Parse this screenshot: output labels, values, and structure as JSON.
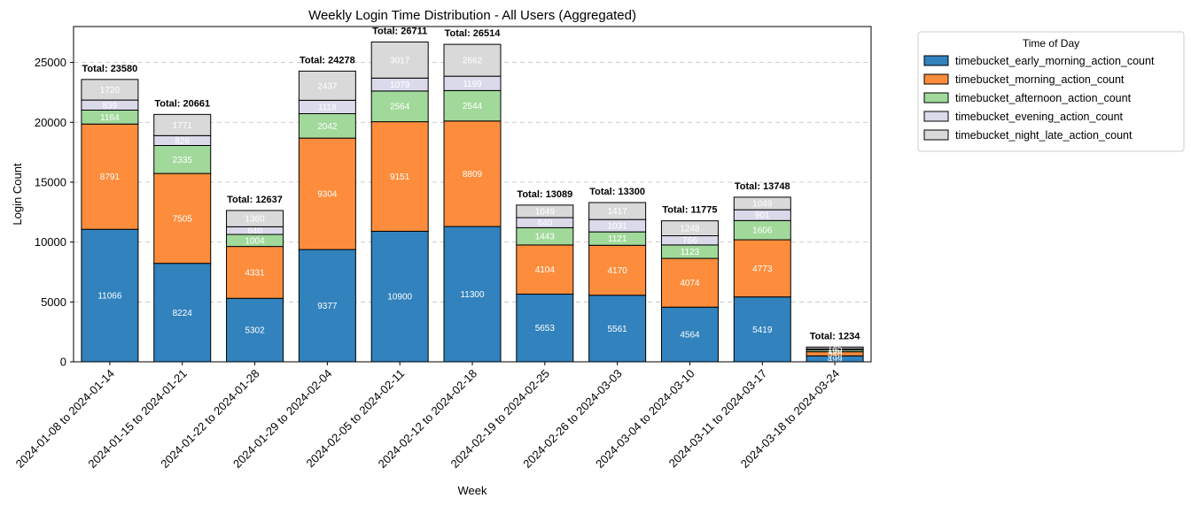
{
  "chart_data": {
    "type": "bar",
    "stacked": true,
    "title": "Weekly Login Time Distribution - All Users (Aggregated)",
    "xlabel": "Week",
    "ylabel": "Login Count",
    "ylim": [
      0,
      28000
    ],
    "yticks": [
      0,
      5000,
      10000,
      15000,
      20000,
      25000
    ],
    "grid": "y-dashed",
    "legend_title": "Time of Day",
    "legend_position": "outside-top-right",
    "total_prefix": "Total: ",
    "categories": [
      "2024-01-08 to 2024-01-14",
      "2024-01-15 to 2024-01-21",
      "2024-01-22 to 2024-01-28",
      "2024-01-29 to 2024-02-04",
      "2024-02-05 to 2024-02-11",
      "2024-02-12 to 2024-02-18",
      "2024-02-19 to 2024-02-25",
      "2024-02-26 to 2024-03-03",
      "2024-03-04 to 2024-03-10",
      "2024-03-11 to 2024-03-17",
      "2024-03-18 to 2024-03-24"
    ],
    "series": [
      {
        "name": "timebucket_early_morning_action_count",
        "color": "#3182bd",
        "values": [
          11066,
          8224,
          5302,
          9377,
          10900,
          11300,
          5653,
          5561,
          4564,
          5419,
          499
        ]
      },
      {
        "name": "timebucket_morning_action_count",
        "color": "#fd8d3c",
        "values": [
          8791,
          7505,
          4331,
          9304,
          9151,
          8809,
          4104,
          4170,
          4074,
          4773,
          340
        ]
      },
      {
        "name": "timebucket_afternoon_action_count",
        "color": "#a1d99b",
        "values": [
          1164,
          2335,
          1004,
          2042,
          2564,
          2544,
          1443,
          1121,
          1123,
          1606,
          150
        ]
      },
      {
        "name": "timebucket_evening_action_count",
        "color": "#dadaeb",
        "values": [
          839,
          826,
          640,
          1118,
          1079,
          1199,
          840,
          1031,
          766,
          901,
          100
        ]
      },
      {
        "name": "timebucket_night_late_action_count",
        "color": "#d9d9d9",
        "values": [
          1720,
          1771,
          1360,
          2437,
          3017,
          2662,
          1049,
          1417,
          1248,
          1049,
          145
        ]
      }
    ],
    "totals": [
      23580,
      20661,
      12637,
      24278,
      26711,
      26514,
      13089,
      13300,
      11775,
      13748,
      1234
    ]
  }
}
